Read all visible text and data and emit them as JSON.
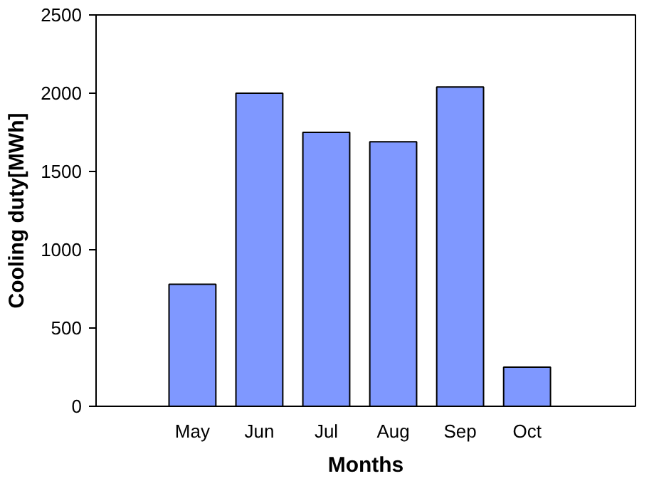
{
  "chart_data": {
    "type": "bar",
    "xlabel": "Months",
    "ylabel": "Cooling duty[MWh]",
    "categories": [
      "May",
      "Jun",
      "Jul",
      "Aug",
      "Sep",
      "Oct"
    ],
    "values": [
      780,
      2000,
      1750,
      1690,
      2040,
      250
    ],
    "color": "#7f98ff",
    "ylim": [
      0,
      2500
    ],
    "yticks": [
      0,
      500,
      1000,
      1500,
      2000,
      2500
    ],
    "grid": false
  }
}
